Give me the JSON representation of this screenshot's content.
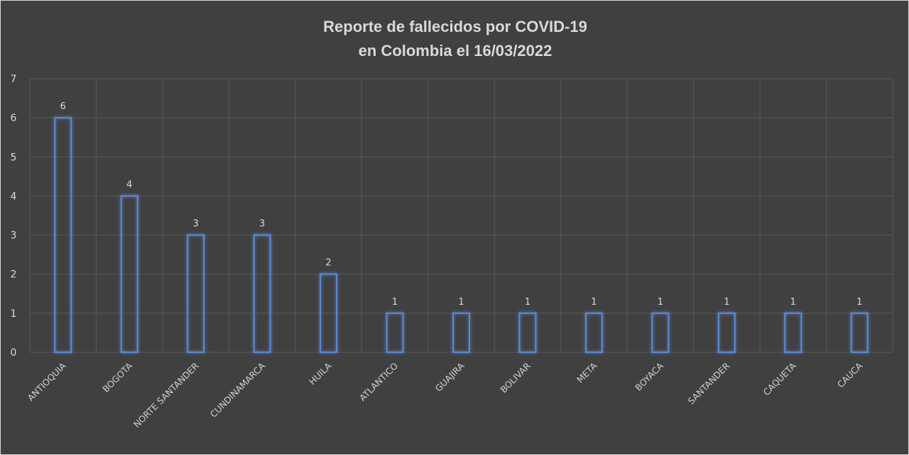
{
  "chart_data": {
    "type": "bar",
    "title_lines": [
      "Reporte de fallecidos por COVID-19",
      "en Colombia el 16/03/2022"
    ],
    "categories": [
      "ANTIOQUIA",
      "BOGOTA",
      "NORTE SANTANDER",
      "CUNDINAMARCA",
      "HUILA",
      "ATLANTICO",
      "GUAJIRA",
      "BOLIVAR",
      "META",
      "BOYACA",
      "SANTANDER",
      "CAQUETA",
      "CAUCA"
    ],
    "values": [
      6,
      4,
      3,
      3,
      2,
      1,
      1,
      1,
      1,
      1,
      1,
      1,
      1
    ],
    "ylim": [
      0,
      7
    ],
    "yticks": [
      0,
      1,
      2,
      3,
      4,
      5,
      6,
      7
    ],
    "grid": true,
    "data_labels": true,
    "colors": {
      "background": "#404040",
      "bar_outline": "#5b8ad6",
      "grid": "#555555",
      "text": "#d9d9d9"
    }
  }
}
